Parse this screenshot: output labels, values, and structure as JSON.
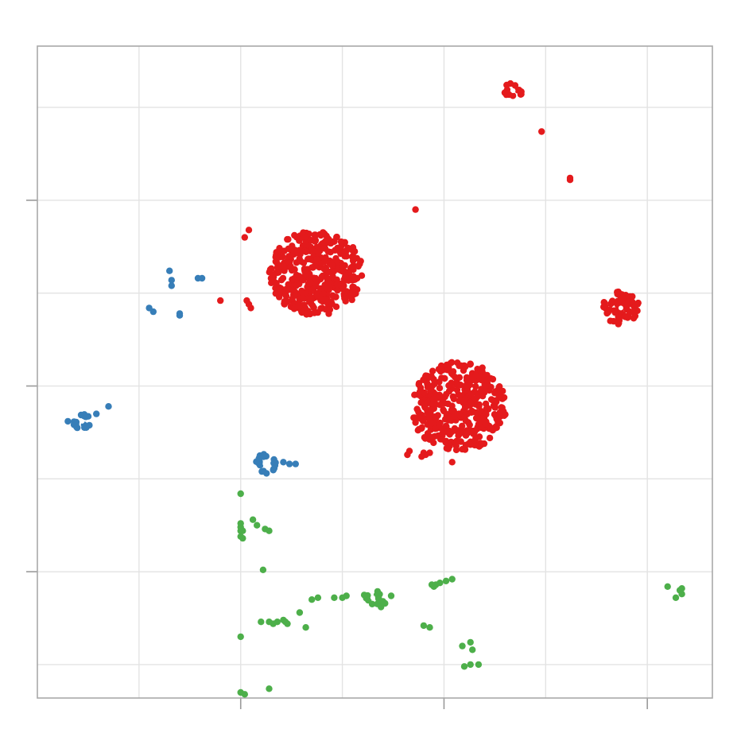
{
  "chart_data": {
    "type": "scatter",
    "title": "",
    "xlabel": "",
    "ylabel": "",
    "xlim": [
      -10,
      23.2
    ],
    "ylim": [
      -16.8,
      18.3
    ],
    "x_major_ticks": [
      0,
      10,
      20
    ],
    "y_major_ticks": [
      -10,
      0,
      10
    ],
    "x_minor_gridlines": [
      -5,
      5,
      15
    ],
    "y_minor_gridlines": [
      -15,
      -5,
      5,
      15
    ],
    "grid": true,
    "tick_labels_visible": false,
    "legend": "none",
    "series": [
      {
        "color": "#e41a1c",
        "clusters": [
          {
            "center": [
              3.7,
              6.1
            ],
            "radius": 2.3,
            "count": 420
          },
          {
            "center": [
              10.7,
              -1.1
            ],
            "radius": 2.4,
            "count": 400
          },
          {
            "center": [
              18.7,
              4.2
            ],
            "radius": 0.9,
            "count": 70
          },
          {
            "center": [
              13.4,
              15.9
            ],
            "radius": 0.45,
            "count": 14,
            "ring": true
          }
        ],
        "points": [
          [
            14.8,
            13.7
          ],
          [
            16.2,
            11.2
          ],
          [
            16.2,
            11.1
          ],
          [
            0.4,
            8.4
          ],
          [
            -1.0,
            4.6
          ],
          [
            0.2,
            8.0
          ],
          [
            0.4,
            4.4
          ],
          [
            0.3,
            4.6
          ],
          [
            0.5,
            4.2
          ],
          [
            10.4,
            -4.1
          ],
          [
            9.3,
            -3.6
          ],
          [
            9.1,
            -3.7
          ],
          [
            9.0,
            -3.6
          ],
          [
            8.2,
            -3.7
          ],
          [
            8.3,
            -3.5
          ],
          [
            8.6,
            9.5
          ],
          [
            8.9,
            -3.8
          ]
        ]
      },
      {
        "color": "#377eb8",
        "clusters": [
          {
            "center": [
              -7.8,
              -1.9
            ],
            "radius": 0.45,
            "count": 18,
            "ring": true
          },
          {
            "center": [
              1.2,
              -4.2
            ],
            "radius": 0.55,
            "count": 22,
            "ring": true
          }
        ],
        "points": [
          [
            -6.5,
            -1.1
          ],
          [
            -8.5,
            -1.9
          ],
          [
            -7.1,
            -1.5
          ],
          [
            -4.5,
            4.2
          ],
          [
            -4.3,
            4.0
          ],
          [
            -3.5,
            6.2
          ],
          [
            -3.4,
            5.7
          ],
          [
            -3.4,
            5.4
          ],
          [
            -3.0,
            3.9
          ],
          [
            -3.0,
            3.8
          ],
          [
            -1.9,
            5.8
          ],
          [
            -2.1,
            5.8
          ],
          [
            2.7,
            -4.2
          ],
          [
            2.4,
            -4.2
          ],
          [
            2.1,
            -4.1
          ]
        ]
      },
      {
        "color": "#4daf4a",
        "clusters": [
          {
            "center": [
              6.5,
              -11.4
            ],
            "radius": 0.45,
            "count": 14,
            "ring": true
          }
        ],
        "points": [
          [
            0.0,
            -7.4
          ],
          [
            0.0,
            -7.8
          ],
          [
            0.6,
            -7.2
          ],
          [
            0.8,
            -7.5
          ],
          [
            1.2,
            -7.7
          ],
          [
            1.4,
            -7.8
          ],
          [
            0.0,
            -5.8
          ],
          [
            0.0,
            -7.6
          ],
          [
            0.1,
            -7.8
          ],
          [
            0.0,
            -8.1
          ],
          [
            0.1,
            -8.2
          ],
          [
            1.1,
            -9.9
          ],
          [
            7.4,
            -11.3
          ],
          [
            3.5,
            -11.5
          ],
          [
            3.8,
            -11.4
          ],
          [
            4.6,
            -11.4
          ],
          [
            5.0,
            -11.4
          ],
          [
            5.2,
            -11.3
          ],
          [
            7.1,
            -11.7
          ],
          [
            6.9,
            -11.9
          ],
          [
            7.0,
            -11.6
          ],
          [
            1.4,
            -12.7
          ],
          [
            1.6,
            -12.8
          ],
          [
            2.3,
            -12.8
          ],
          [
            2.1,
            -12.6
          ],
          [
            2.2,
            -12.7
          ],
          [
            0.0,
            -13.5
          ],
          [
            1.8,
            -12.7
          ],
          [
            1.0,
            -12.7
          ],
          [
            3.2,
            -13.0
          ],
          [
            2.9,
            -12.2
          ],
          [
            9.3,
            -13.0
          ],
          [
            9.0,
            -12.9
          ],
          [
            9.5,
            -10.8
          ],
          [
            9.4,
            -10.7
          ],
          [
            9.8,
            -10.6
          ],
          [
            10.1,
            -10.5
          ],
          [
            10.4,
            -10.4
          ],
          [
            9.6,
            -10.7
          ],
          [
            11.3,
            -13.8
          ],
          [
            10.9,
            -14.0
          ],
          [
            11.4,
            -14.2
          ],
          [
            11.7,
            -15.0
          ],
          [
            11.3,
            -15.0
          ],
          [
            11.0,
            -15.1
          ],
          [
            0.2,
            -16.6
          ],
          [
            0.0,
            -16.5
          ],
          [
            1.4,
            -16.3
          ],
          [
            21.0,
            -10.8
          ],
          [
            21.6,
            -11.0
          ],
          [
            21.7,
            -10.9
          ],
          [
            21.7,
            -11.2
          ],
          [
            21.4,
            -11.4
          ]
        ]
      }
    ]
  }
}
